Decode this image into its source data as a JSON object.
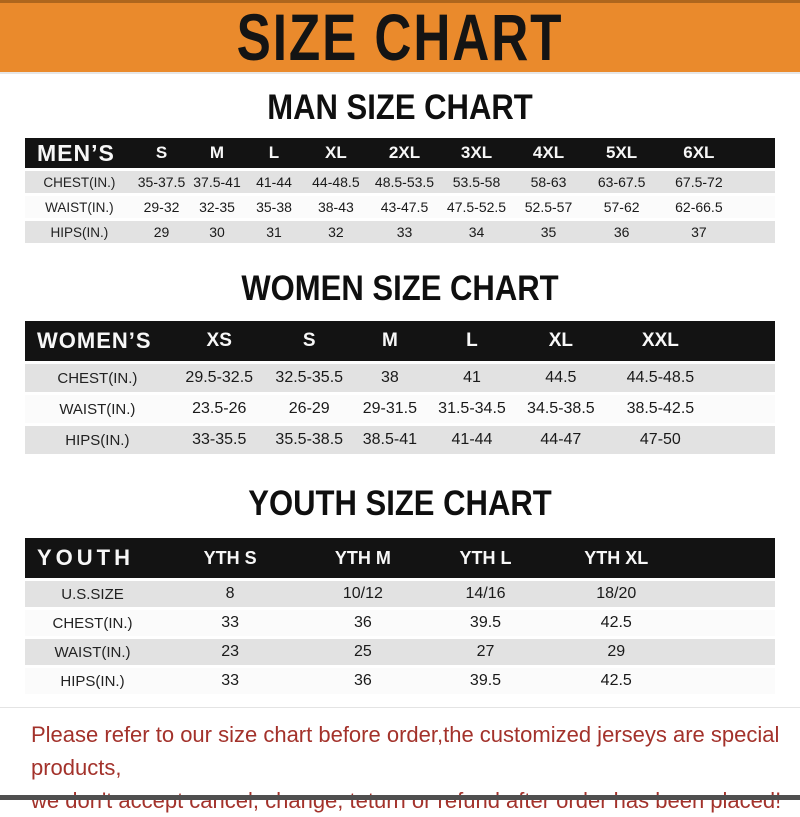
{
  "banner": {
    "title": "SIZE CHART"
  },
  "colors": {
    "banner_orange": "#EA8A2C",
    "header_bar_black": "#131313",
    "row_gray": "#E2E2E2",
    "note_red": "#A3322B"
  },
  "sections": [
    {
      "heading": "MAN SIZE CHART",
      "table": {
        "header_label": "MEN’S",
        "columns": [
          "S",
          "M",
          "L",
          "XL",
          "2XL",
          "3XL",
          "4XL",
          "5XL",
          "6XL"
        ],
        "rows": [
          {
            "label": "CHEST(IN.)",
            "values": [
              "35-37.5",
              "37.5-41",
              "41-44",
              "44-48.5",
              "48.5-53.5",
              "53.5-58",
              "58-63",
              "63-67.5",
              "67.5-72"
            ]
          },
          {
            "label": "WAIST(IN.)",
            "values": [
              "29-32",
              "32-35",
              "35-38",
              "38-43",
              "43-47.5",
              "47.5-52.5",
              "52.5-57",
              "57-62",
              "62-66.5"
            ]
          },
          {
            "label": "HIPS(IN.)",
            "values": [
              "29",
              "30",
              "31",
              "32",
              "33",
              "34",
              "35",
              "36",
              "37"
            ]
          }
        ]
      }
    },
    {
      "heading": "WOMEN SIZE CHART",
      "table": {
        "header_label": "WOMEN’S",
        "columns": [
          "XS",
          "S",
          "M",
          "L",
          "XL",
          "XXL"
        ],
        "rows": [
          {
            "label": "CHEST(IN.)",
            "values": [
              "29.5-32.5",
              "32.5-35.5",
              "38",
              "41",
              "44.5",
              "44.5-48.5"
            ]
          },
          {
            "label": "WAIST(IN.)",
            "values": [
              "23.5-26",
              "26-29",
              "29-31.5",
              "31.5-34.5",
              "34.5-38.5",
              "38.5-42.5"
            ]
          },
          {
            "label": "HIPS(IN.)",
            "values": [
              "33-35.5",
              "35.5-38.5",
              "38.5-41",
              "41-44",
              "44-47",
              "47-50"
            ]
          }
        ]
      }
    },
    {
      "heading": "YOUTH SIZE CHART",
      "table": {
        "header_label": "YOUTH",
        "columns": [
          "YTH S",
          "YTH M",
          "YTH L",
          "YTH XL"
        ],
        "rows": [
          {
            "label": "U.S.SIZE",
            "values": [
              "8",
              "10/12",
              "14/16",
              "18/20"
            ]
          },
          {
            "label": "CHEST(IN.)",
            "values": [
              "33",
              "36",
              "39.5",
              "42.5"
            ]
          },
          {
            "label": "WAIST(IN.)",
            "values": [
              "23",
              "25",
              "27",
              "29"
            ]
          },
          {
            "label": "HIPS(IN.)",
            "values": [
              "33",
              "36",
              "39.5",
              "42.5"
            ]
          }
        ]
      }
    }
  ],
  "footer": {
    "line1": "Please refer to our size chart before order,the customized jerseys are special products,",
    "line2": "we don't accept cancel, change, teturn or refund after order has been placed!"
  }
}
